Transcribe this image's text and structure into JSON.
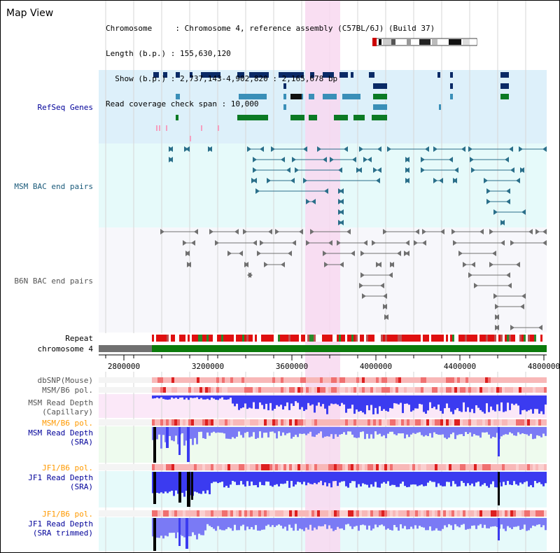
{
  "view_title": "Map View",
  "info": {
    "chromosome_line": "Chromosome     : Chromosome 4, reference assembly (C57BL/6J) (Build 37)",
    "length_line": "Length (b.p.) : 155,630,120",
    "show_line": "  Show (b.p.) : 2,737,143-4,902,820 : 2,165,678 bp",
    "coverage_line": "Read coverage check span : 10,000"
  },
  "track_labels": {
    "refseq": "RefSeq Genes",
    "msm_bac": "MSM BAC end pairs",
    "b6n_bac": "B6N BAC end pairs",
    "repeat": "Repeat",
    "chromosome": "chromosome 4",
    "dbsnp": "dbSNP(Mouse)",
    "msm_b6_pol_1": "MSM/B6 pol.",
    "msm_depth_cap": "MSM Read Depth\n(Capillary)",
    "msm_b6_pol_2": "MSM/B6 pol.",
    "msm_depth_sra": "MSM Read Depth\n(SRA)",
    "jf1_b6_pol_1": "JF1/B6 pol.",
    "jf1_depth_sra": "JF1 Read Depth\n(SRA)",
    "jf1_b6_pol_2": "JF1/B6 pol.",
    "jf1_depth_trim": "JF1 Read Depth\n(SRA trimmed)"
  },
  "axis": {
    "ticks": [
      "2800000",
      "3200000",
      "3600000",
      "4000000",
      "4400000",
      "4800000"
    ]
  },
  "colors": {
    "refseq_bg": "#ddf0fa",
    "msm_bg": "#e6fafa",
    "highlight": "#f8d8f0",
    "gene_navy": "#0a2a66",
    "gene_teal": "#3a8fb8",
    "gene_green": "#0b7a24",
    "msm_pair": "#2a6f8a",
    "b6n_pair": "#707070",
    "chrom_green": "#0b7a0b",
    "chrom_gray": "#707070",
    "depth_blue": "#3b3bf0",
    "depth_lightblue": "#7a7af5",
    "pol_red": "#ee2a2a",
    "pol_orange_label": "#ff9900",
    "navy_label": "#000099"
  }
}
